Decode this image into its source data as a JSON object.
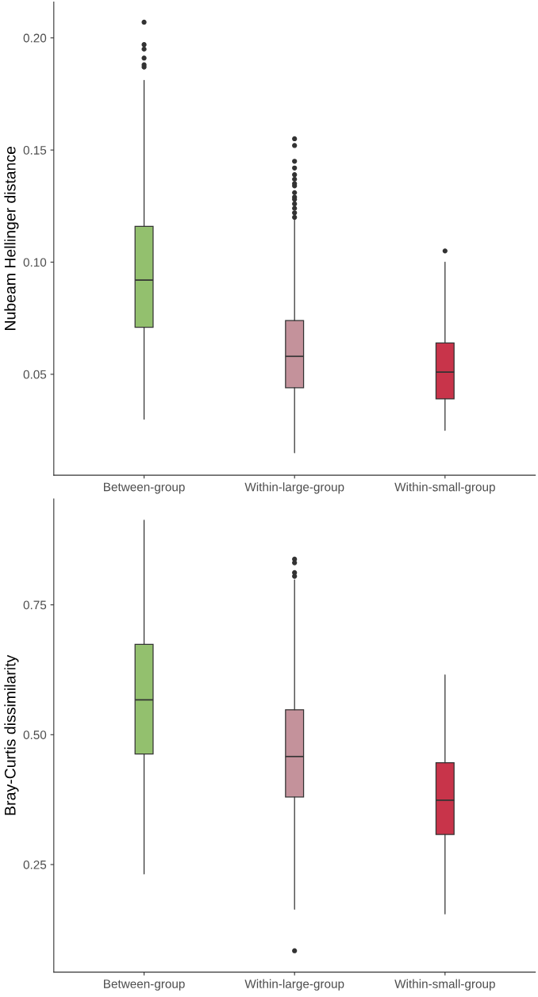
{
  "chart_data": [
    {
      "type": "box",
      "ylabel": "Nubeam Hellinger distance",
      "categories": [
        "Between-group",
        "Within-large-group",
        "Within-small-group"
      ],
      "colors": [
        "#93c06e",
        "#c4929b",
        "#c8344a"
      ],
      "ylim": [
        0.005,
        0.216
      ],
      "yticks": [
        0.05,
        {
          "value": 0.1,
          "label": "0.10"
        },
        0.15,
        {
          "value": 0.2,
          "label": "0.20"
        }
      ],
      "grid": false,
      "legend": false,
      "boxes": [
        {
          "low": 0.03,
          "q1": 0.071,
          "median": 0.092,
          "q3": 0.116,
          "high": 0.181,
          "outliers": [
            0.207,
            0.197,
            0.195,
            0.191,
            0.188,
            0.187
          ]
        },
        {
          "low": 0.015,
          "q1": 0.044,
          "median": 0.058,
          "q3": 0.074,
          "high": 0.119,
          "outliers": [
            0.155,
            0.152,
            0.145,
            0.142,
            0.139,
            0.137,
            0.135,
            0.134,
            0.131,
            0.129,
            0.128,
            0.126,
            0.124,
            0.122,
            0.12
          ]
        },
        {
          "low": 0.025,
          "q1": 0.039,
          "median": 0.051,
          "q3": 0.064,
          "high": 0.1,
          "outliers": [
            0.105
          ]
        }
      ]
    },
    {
      "type": "box",
      "ylabel": "Bray-Curtis dissimilarity",
      "categories": [
        "Between-group",
        "Within-large-group",
        "Within-small-group"
      ],
      "colors": [
        "#93c06e",
        "#c4929b",
        "#c8344a"
      ],
      "ylim": [
        0.043,
        0.954
      ],
      "yticks": [
        0.25,
        {
          "value": 0.5,
          "label": "0.50"
        },
        0.75
      ],
      "grid": false,
      "legend": false,
      "boxes": [
        {
          "low": 0.232,
          "q1": 0.463,
          "median": 0.567,
          "q3": 0.674,
          "high": 0.913
        },
        {
          "low": 0.164,
          "q1": 0.38,
          "median": 0.458,
          "q3": 0.548,
          "high": 0.798,
          "outliers": [
            0.838,
            0.831,
            0.812,
            0.805,
            0.084
          ]
        },
        {
          "low": 0.155,
          "q1": 0.308,
          "median": 0.374,
          "q3": 0.446,
          "high": 0.615
        }
      ]
    }
  ]
}
